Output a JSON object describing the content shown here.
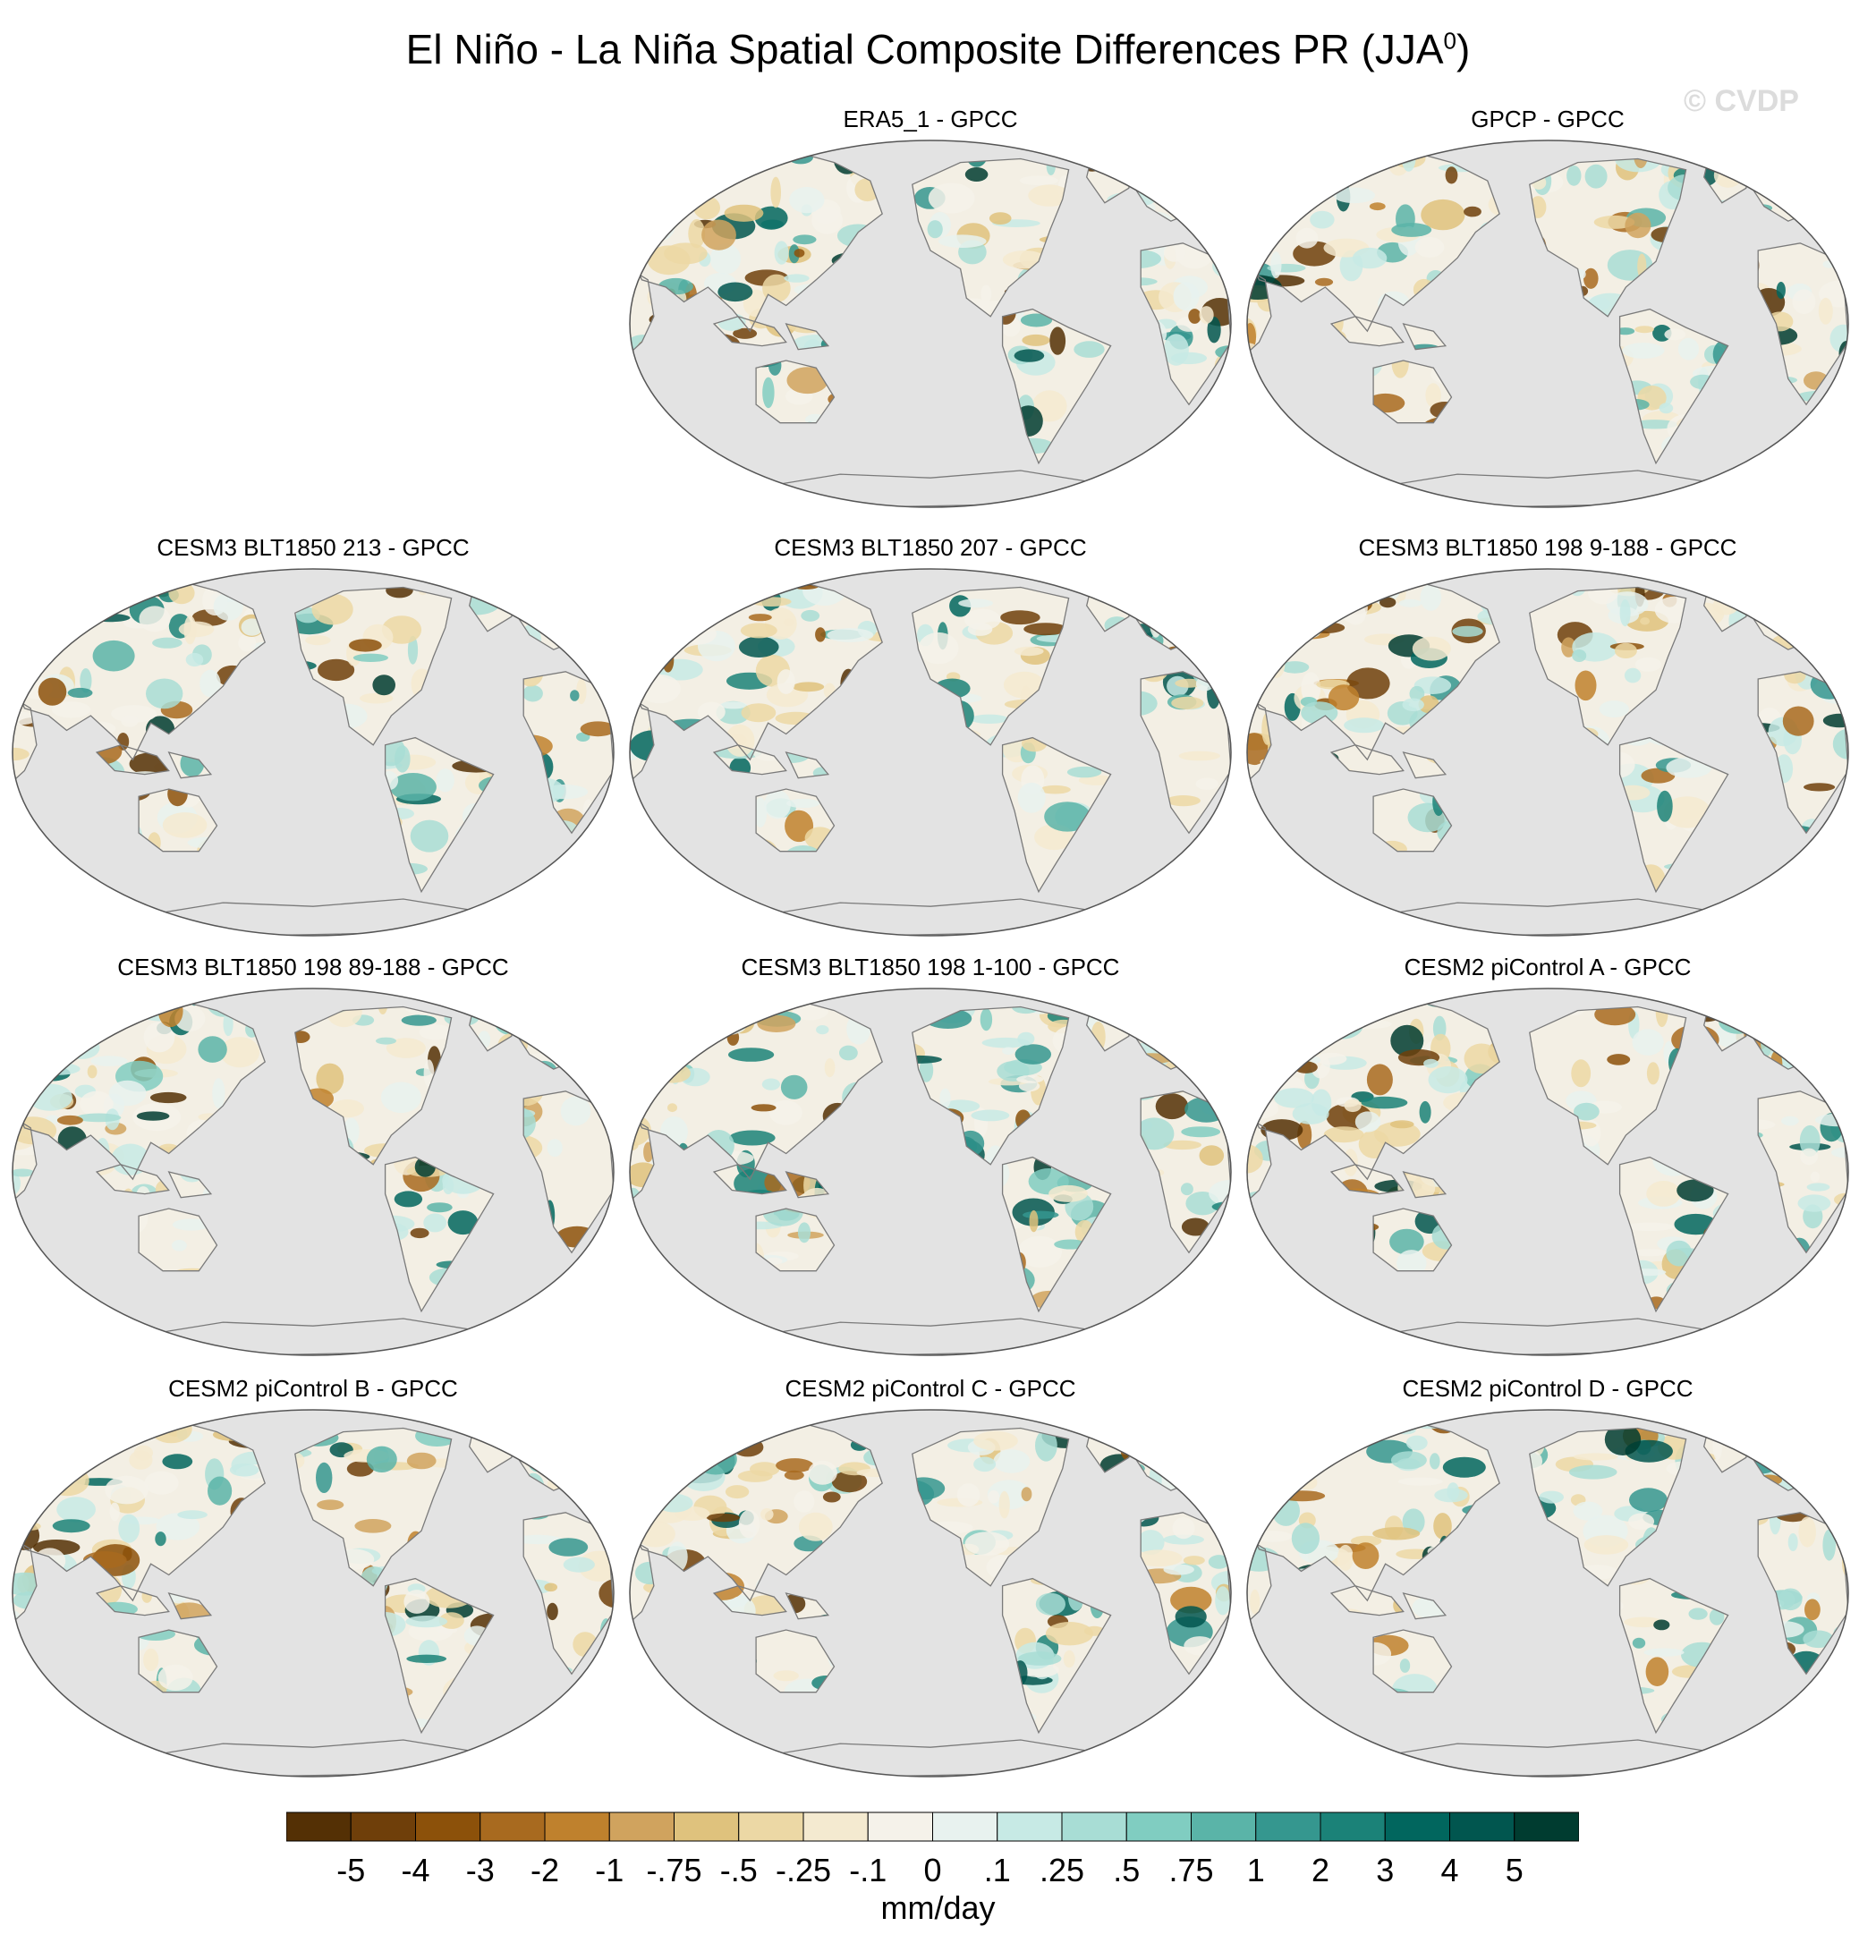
{
  "title": "El Niño - La Niña Spatial Composite Differences PR (JJA",
  "title_superscript": "0",
  "title_close": ")",
  "watermark": "© CVDP",
  "panels": [
    {
      "label": "ERA5_1 - GPCC",
      "seed": 11
    },
    {
      "label": "GPCP - GPCC",
      "seed": 23
    },
    {
      "label": "CESM3 BLT1850 213 - GPCC",
      "seed": 37
    },
    {
      "label": "CESM3 BLT1850 207 - GPCC",
      "seed": 41
    },
    {
      "label": "CESM3 BLT1850 198 9-188 - GPCC",
      "seed": 53
    },
    {
      "label": "CESM3 BLT1850 198 89-188 - GPCC",
      "seed": 67
    },
    {
      "label": "CESM3 BLT1850 198 1-100 - GPCC",
      "seed": 71
    },
    {
      "label": "CESM2 piControl A - GPCC",
      "seed": 83
    },
    {
      "label": "CESM2 piControl B - GPCC",
      "seed": 97
    },
    {
      "label": "CESM2 piControl C - GPCC",
      "seed": 103
    },
    {
      "label": "CESM2 piControl D - GPCC",
      "seed": 117
    }
  ],
  "colorbar": {
    "colors": [
      "#543005",
      "#6f3f0a",
      "#8c510a",
      "#a86a1f",
      "#bf812d",
      "#d0a35e",
      "#dfc27d",
      "#ecd8a5",
      "#f4ead0",
      "#f5f2ea",
      "#e8f2ef",
      "#c7eae5",
      "#a8ddd5",
      "#80cdc1",
      "#5ab4a8",
      "#35978f",
      "#1b8278",
      "#01665e",
      "#01564f",
      "#003c30"
    ],
    "labels": [
      "-5",
      "-4",
      "-3",
      "-2",
      "-1",
      "-.75",
      "-.5",
      "-.25",
      "-.1",
      "0",
      ".1",
      ".25",
      ".5",
      ".75",
      "1",
      "2",
      "3",
      "4",
      "5"
    ],
    "units": "mm/day"
  },
  "ocean_color": "#e3e3e3",
  "coast_color": "#7a7a7a"
}
